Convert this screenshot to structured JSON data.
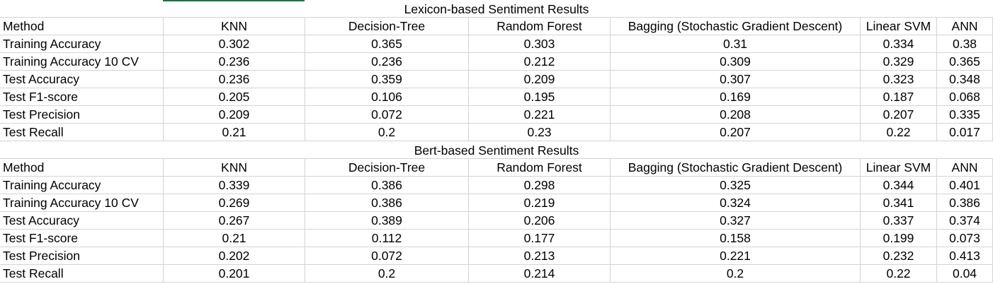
{
  "tables": [
    {
      "title": "Lexicon-based Sentiment Results",
      "headers": [
        "Method",
        "KNN",
        "Decision-Tree",
        "Random Forest",
        "Bagging (Stochastic Gradient Descent)",
        "Linear SVM",
        "ANN"
      ],
      "rows": [
        [
          "Training Accuracy",
          "0.302",
          "0.365",
          "0.303",
          "0.31",
          "0.334",
          "0.38"
        ],
        [
          "Training Accuracy 10 CV",
          "0.236",
          "0.236",
          "0.212",
          "0.309",
          "0.329",
          "0.365"
        ],
        [
          "Test Accuracy",
          "0.236",
          "0.359",
          "0.209",
          "0.307",
          "0.323",
          "0.348"
        ],
        [
          "Test F1-score",
          "0.205",
          "0.106",
          "0.195",
          "0.169",
          "0.187",
          "0.068"
        ],
        [
          "Test Precision",
          "0.209",
          "0.072",
          "0.221",
          "0.208",
          "0.207",
          "0.335"
        ],
        [
          "Test Recall",
          "0.21",
          "0.2",
          "0.23",
          "0.207",
          "0.22",
          "0.017"
        ]
      ]
    },
    {
      "title": "Bert-based Sentiment Results",
      "headers": [
        "Method",
        "KNN",
        "Decision-Tree",
        "Random Forest",
        "Bagging (Stochastic Gradient Descent)",
        "Linear SVM",
        "ANN"
      ],
      "rows": [
        [
          "Training Accuracy",
          "0.339",
          "0.386",
          "0.298",
          "0.325",
          "0.344",
          "0.401"
        ],
        [
          "Training Accuracy 10 CV",
          "0.269",
          "0.386",
          "0.219",
          "0.324",
          "0.341",
          "0.386"
        ],
        [
          "Test Accuracy",
          "0.267",
          "0.389",
          "0.206",
          "0.327",
          "0.337",
          "0.374"
        ],
        [
          "Test F1-score",
          "0.21",
          "0.112",
          "0.177",
          "0.158",
          "0.199",
          "0.073"
        ],
        [
          "Test Precision",
          "0.202",
          "0.072",
          "0.213",
          "0.221",
          "0.232",
          "0.413"
        ],
        [
          "Test Recall",
          "0.201",
          "0.2",
          "0.214",
          "0.2",
          "0.22",
          "0.04"
        ]
      ]
    }
  ],
  "colors": {
    "gridline": "#d4d4d4",
    "selection_accent": "#1e7145",
    "text": "#000000"
  }
}
